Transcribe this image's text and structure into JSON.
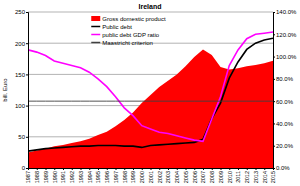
{
  "chart_data": {
    "type": "line",
    "title": "Ireland",
    "y_label": "bill. Euro",
    "categories": [
      "1987",
      "1988",
      "1989",
      "1990",
      "1991",
      "1992",
      "1993",
      "1994",
      "1995",
      "1996",
      "1997",
      "1998",
      "1999",
      "2000",
      "2001",
      "2002",
      "2003",
      "2004",
      "2005",
      "2006",
      "2007",
      "2008",
      "2009",
      "2010",
      "2011",
      "2012",
      "2013",
      "2014",
      "2015"
    ],
    "series": [
      {
        "name": "Gross domestic product",
        "type": "area",
        "color": "#ff0000",
        "values": [
          25,
          28,
          31,
          35,
          37,
          40,
          43,
          47,
          53,
          58,
          67,
          77,
          89,
          104,
          117,
          130,
          140,
          150,
          163,
          178,
          190,
          181,
          162,
          158,
          160,
          163,
          165,
          168,
          172
        ]
      },
      {
        "name": "Public debt",
        "type": "line",
        "color": "#000000",
        "values": [
          27,
          29,
          31,
          32,
          33,
          34,
          35,
          35,
          36,
          36,
          36,
          35,
          35,
          33,
          36,
          37,
          38,
          39,
          40,
          41,
          46,
          79,
          104,
          144,
          170,
          190,
          200,
          205,
          208
        ]
      },
      {
        "name": "public debt GDP ratio",
        "type": "line",
        "color": "#ff00ff",
        "axis": "y2",
        "values": [
          106,
          104,
          101,
          96,
          94,
          92,
          90,
          86,
          80,
          73,
          64,
          54,
          47,
          38,
          35,
          32,
          31,
          29,
          27,
          25,
          24,
          44,
          64,
          92,
          106,
          116,
          120,
          121,
          122
        ]
      },
      {
        "name": "Maastricht criterion",
        "type": "line",
        "color": "#404040",
        "axis": "y2",
        "values": [
          60,
          60,
          60,
          60,
          60,
          60,
          60,
          60,
          60,
          60,
          60,
          60,
          60,
          60,
          60,
          60,
          60,
          60,
          60,
          60,
          60,
          60,
          60,
          60,
          60,
          60,
          60,
          60,
          60
        ]
      }
    ],
    "ylim": [
      0,
      250
    ],
    "yticks": [
      0,
      50,
      100,
      150,
      200,
      250
    ],
    "y2lim": [
      0,
      140
    ],
    "y2ticks": [
      {
        "value": 0,
        "label": "0.0%"
      },
      {
        "value": 20,
        "label": "20.0%"
      },
      {
        "value": 40,
        "label": "40.0%"
      },
      {
        "value": 60,
        "label": "60.0%"
      },
      {
        "value": 80,
        "label": "80.0%"
      },
      {
        "value": 100,
        "label": "100.0%"
      },
      {
        "value": 120,
        "label": "120.0%"
      },
      {
        "value": 140,
        "label": "140.0%"
      }
    ],
    "grid": true,
    "legend": "top"
  }
}
